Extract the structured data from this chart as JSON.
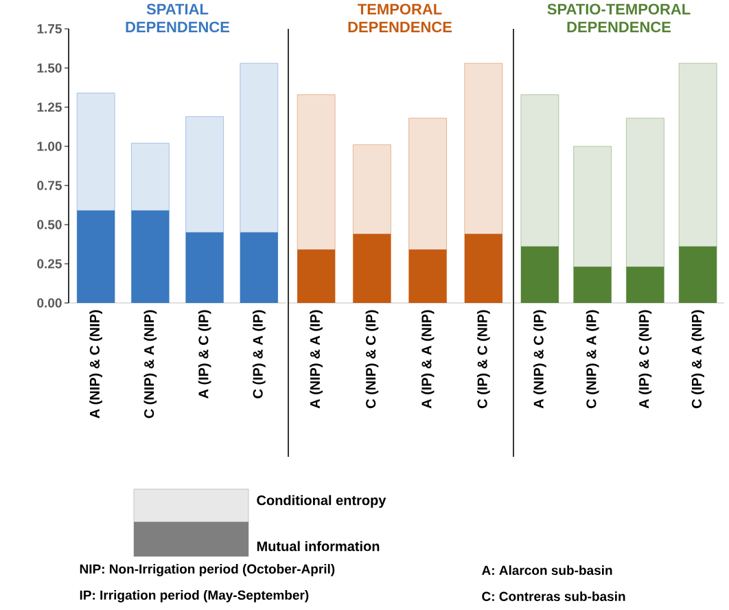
{
  "chart_data": [
    {
      "type": "bar",
      "title": "SPATIAL DEPENDENCE",
      "stacked": true,
      "categories": [
        "A (NIP) & C (NIP)",
        "C (NIP) & A (NIP)",
        "A (IP) & C (IP)",
        "C (IP) & A (IP)"
      ],
      "series": [
        {
          "name": "Mutual information",
          "color": "#3a78c0",
          "values": [
            0.59,
            0.59,
            0.45,
            0.45
          ]
        },
        {
          "name": "Conditional entropy",
          "color": "#3a78c0",
          "values": [
            0.75,
            0.43,
            0.74,
            1.08
          ]
        }
      ],
      "ylim": [
        0,
        1.75
      ],
      "yticks": [
        {
          "value": 0,
          "label": "0.00"
        },
        {
          "value": 0.25,
          "label": "0.25"
        },
        {
          "value": 0.5,
          "label": "0.50"
        },
        {
          "value": 0.75,
          "label": "0.75"
        },
        {
          "value": 1,
          "label": "1.00"
        },
        {
          "value": 1.25,
          "label": "1.25"
        },
        {
          "value": 1.5,
          "label": "1.50"
        },
        {
          "value": 1.75,
          "label": "1.75"
        }
      ],
      "legend": "bottom",
      "annotations": [
        "NIP: Non-Irrigation period (October-April)",
        "IP: Irrigation period (May-September)",
        "A: Alarcon sub-basin",
        "C: Contreras sub-basin"
      ]
    },
    {
      "type": "bar",
      "title": "TEMPORAL DEPENDENCE",
      "stacked": true,
      "categories": [
        "A (NIP) & A (IP)",
        "C (NIP) & C (IP)",
        "A (IP) & A (NIP)",
        "C (IP) & C (NIP)"
      ],
      "series": [
        {
          "color": "#c55a11",
          "values": [
            0.34,
            0.44,
            0.34,
            0.44
          ]
        },
        {
          "color": "#c55a11",
          "values": [
            0.99,
            0.57,
            0.84,
            1.09
          ]
        }
      ],
      "ylim": [
        0,
        1.75
      ],
      "tick_labels": "x"
    },
    {
      "type": "bar",
      "title": "SPATIO-TEMPORAL DEPENDENCE",
      "stacked": true,
      "categories": [
        "A (NIP) & C (IP)",
        "C (NIP) & A (IP)",
        "A (IP) & C (NIP)",
        "C (IP) & A (NIP)"
      ],
      "series": [
        {
          "color": "#548235",
          "values": [
            0.36,
            0.23,
            0.23,
            0.36
          ]
        },
        {
          "color": "#548235",
          "values": [
            0.97,
            0.77,
            0.95,
            1.17
          ]
        }
      ],
      "ylim": [
        0,
        1.75
      ],
      "tick_labels": "x"
    }
  ]
}
